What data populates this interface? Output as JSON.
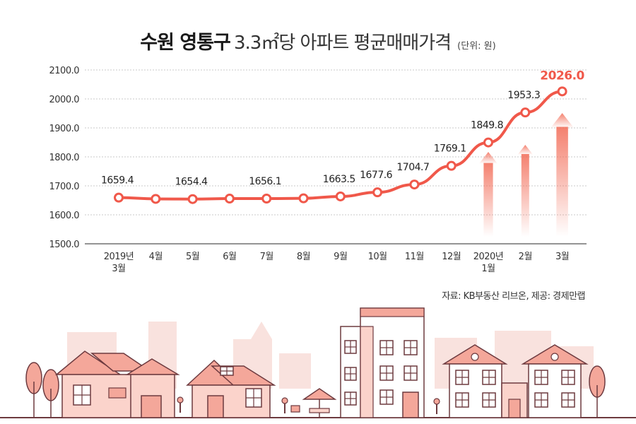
{
  "title": {
    "bold": "수원 영통구",
    "light": "3.3㎡당 아파트 평균매매가격",
    "unit": "(단위: 원)"
  },
  "source": "자료: KB부동산 리브온, 제공: 경제만랩",
  "colors": {
    "line": "#f0584a",
    "point_fill": "#ffffff",
    "highlight_label": "#f0584a",
    "grid": "#c8c8c8",
    "axis": "#555555",
    "arrow": "#f58a73",
    "building_fill": "#f4a79a",
    "building_stroke": "#6d3a3f",
    "background_silhouette": "#f9e2de"
  },
  "chart_data": {
    "type": "line",
    "title": "수원 영통구 3.3㎡당 아파트 평균매매가격",
    "ylabel": "(단위: 원)",
    "ylim": [
      1500,
      2100
    ],
    "yticks": [
      "1500.0",
      "1600.0",
      "1700.0",
      "1800.0",
      "1900.0",
      "2000.0",
      "2100.0"
    ],
    "ytick_values": [
      1500,
      1600,
      1700,
      1800,
      1900,
      2000,
      2100
    ],
    "grid": true,
    "categories": [
      [
        "2019년",
        "3월"
      ],
      [
        "4월"
      ],
      [
        "5월"
      ],
      [
        "6월"
      ],
      [
        "7월"
      ],
      [
        "8월"
      ],
      [
        "9월"
      ],
      [
        "10월"
      ],
      [
        "11월"
      ],
      [
        "12월"
      ],
      [
        "2020년",
        "1월"
      ],
      [
        "2월"
      ],
      [
        "3월"
      ]
    ],
    "values": [
      1659.4,
      1655.0,
      1654.4,
      1656.0,
      1656.1,
      1657.0,
      1663.5,
      1677.6,
      1704.7,
      1769.1,
      1849.8,
      1953.3,
      2026.0
    ],
    "data_labels": [
      "1659.4",
      "",
      "1654.4",
      "",
      "1656.1",
      "",
      "1663.5",
      "1677.6",
      "1704.7",
      "1769.1",
      "1849.8",
      "1953.3",
      "2026.0"
    ],
    "highlight_index": 12,
    "up_arrows_at": [
      10,
      11,
      12
    ]
  }
}
